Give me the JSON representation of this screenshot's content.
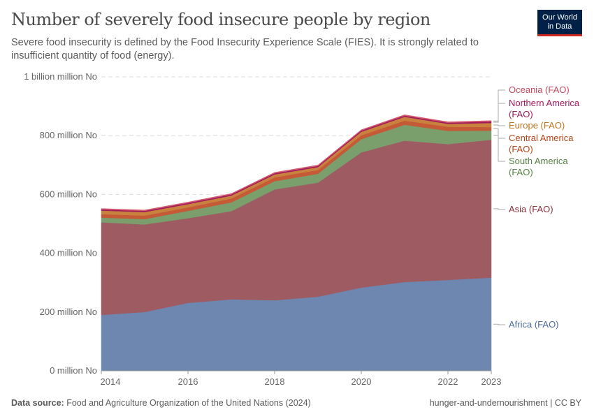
{
  "title": "Number of severely food insecure people by region",
  "subtitle": "Severe food insecurity is defined by the Food Insecurity Experience Scale (FIES). It is strongly related to insufficient quantity of food (energy).",
  "logo": {
    "line1": "Our World",
    "line2": "in Data"
  },
  "footer": {
    "source_label": "Data source:",
    "source": "Food and Agriculture Organization of the United Nations (2024)",
    "right": "hunger-and-undernourishment | CC BY"
  },
  "chart_data": {
    "type": "area",
    "stacked": true,
    "x": [
      2014,
      2015,
      2016,
      2017,
      2018,
      2019,
      2020,
      2021,
      2022,
      2023
    ],
    "xticks": [
      "2014",
      "2016",
      "2018",
      "2020",
      "2022",
      "2023"
    ],
    "yticks": [
      {
        "v": 0,
        "label": "0 million No"
      },
      {
        "v": 200,
        "label": "200 million No"
      },
      {
        "v": 400,
        "label": "400 million No"
      },
      {
        "v": 600,
        "label": "600 million No"
      },
      {
        "v": 800,
        "label": "800 million No"
      },
      {
        "v": 1000,
        "label": "1 billion million No"
      }
    ],
    "ylim": [
      0,
      1000
    ],
    "yunit": "million",
    "grid": "horizontal dashed",
    "legend": "right (inline labels)",
    "series": [
      {
        "name": "Africa (FAO)",
        "color": "#6D87B0",
        "label_color": "#4C6A9C",
        "values": [
          190,
          200,
          231,
          243,
          240,
          252,
          283,
          302,
          309,
          317
        ]
      },
      {
        "name": "Asia (FAO)",
        "color": "#9E5B62",
        "label_color": "#883039",
        "values": [
          315,
          298,
          288,
          300,
          377,
          388,
          460,
          481,
          462,
          469
        ]
      },
      {
        "name": "South America (FAO)",
        "color": "#7A9E6C",
        "label_color": "#578145",
        "values": [
          16,
          18,
          25,
          30,
          28,
          30,
          45,
          54,
          45,
          31
        ]
      },
      {
        "name": "Central America (FAO)",
        "color": "#C45A36",
        "label_color": "#B64516",
        "values": [
          12,
          12,
          12,
          13,
          13,
          13,
          13,
          14,
          14,
          12
        ]
      },
      {
        "name": "Europe (FAO)",
        "color": "#C8823E",
        "label_color": "#C1761F",
        "values": [
          12,
          12,
          11,
          10,
          10,
          10,
          12,
          13,
          10,
          14
        ]
      },
      {
        "name": "Northern America (FAO)",
        "color": "#A2195B",
        "label_color": "#A2195B",
        "values": [
          4,
          4,
          4,
          4,
          4,
          4,
          4,
          4,
          4,
          5
        ]
      },
      {
        "name": "Oceania (FAO)",
        "color": "#D35A6F",
        "label_color": "#C8485E",
        "values": [
          3,
          3,
          3,
          3,
          3,
          3,
          3,
          3,
          3,
          3
        ]
      }
    ]
  }
}
